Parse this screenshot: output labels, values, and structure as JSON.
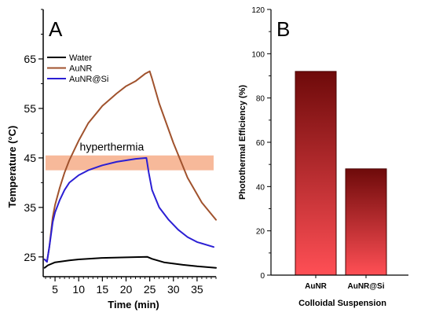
{
  "chart_data": [
    {
      "type": "line",
      "panel_label": "A",
      "xlabel": "Time (min)",
      "ylabel": "Temperature (°C)",
      "xlim": [
        2.5,
        39
      ],
      "ylim": [
        21,
        75
      ],
      "xticks": [
        5,
        10,
        15,
        20,
        25,
        30,
        35
      ],
      "yticks": [
        25,
        35,
        45,
        55,
        65
      ],
      "legend_position": "top-left",
      "annotation": {
        "text": "hyperthermia",
        "y_range": [
          42.5,
          45.5
        ],
        "x_range": [
          3,
          38.5
        ],
        "color": "#f7b99a"
      },
      "series": [
        {
          "name": "Water",
          "color": "#000000",
          "x": [
            2.8,
            3.5,
            5,
            8,
            10,
            15,
            20,
            24.5,
            25.5,
            28,
            32,
            35,
            39
          ],
          "y": [
            22.8,
            23.3,
            23.9,
            24.3,
            24.5,
            24.8,
            24.9,
            25.0,
            24.6,
            23.9,
            23.4,
            23.1,
            22.8
          ]
        },
        {
          "name": "AuNR",
          "color": "#a0522d",
          "x": [
            2.8,
            3.3,
            3.8,
            4.5,
            5,
            6,
            7,
            8,
            10,
            12,
            15,
            18,
            20,
            22,
            24,
            25,
            25.5,
            27,
            30,
            33,
            36,
            39
          ],
          "y": [
            24.5,
            24,
            27,
            33,
            35.5,
            39,
            42,
            44.5,
            48.5,
            52,
            55.5,
            58,
            59.5,
            60.5,
            62,
            62.5,
            61,
            56,
            48,
            41,
            36,
            32.5
          ]
        },
        {
          "name": "AuNR@Si",
          "color": "#2b1fd4",
          "x": [
            2.8,
            3.3,
            3.8,
            4.5,
            5,
            6,
            7,
            8,
            10,
            12,
            15,
            18,
            20,
            22,
            24.3,
            24.8,
            25.5,
            27,
            29,
            31,
            33,
            35,
            38.5
          ],
          "y": [
            24.5,
            24,
            27,
            32,
            34,
            36.5,
            38.5,
            40,
            41.5,
            42.5,
            43.5,
            44.2,
            44.5,
            44.8,
            45,
            42,
            38.5,
            35,
            32.5,
            30.5,
            29,
            28,
            27
          ]
        }
      ]
    },
    {
      "type": "bar",
      "panel_label": "B",
      "xlabel": "Colloidal Suspension",
      "ylabel": "Photothermal Efficiency (%)",
      "ylim": [
        0,
        120
      ],
      "yticks": [
        0,
        20,
        40,
        60,
        80,
        100,
        120
      ],
      "categories": [
        "AuNR",
        "AuNR@Si"
      ],
      "values": [
        92,
        48
      ],
      "bar_gradient": [
        "#6e0a0a",
        "#ff4f55"
      ]
    }
  ]
}
